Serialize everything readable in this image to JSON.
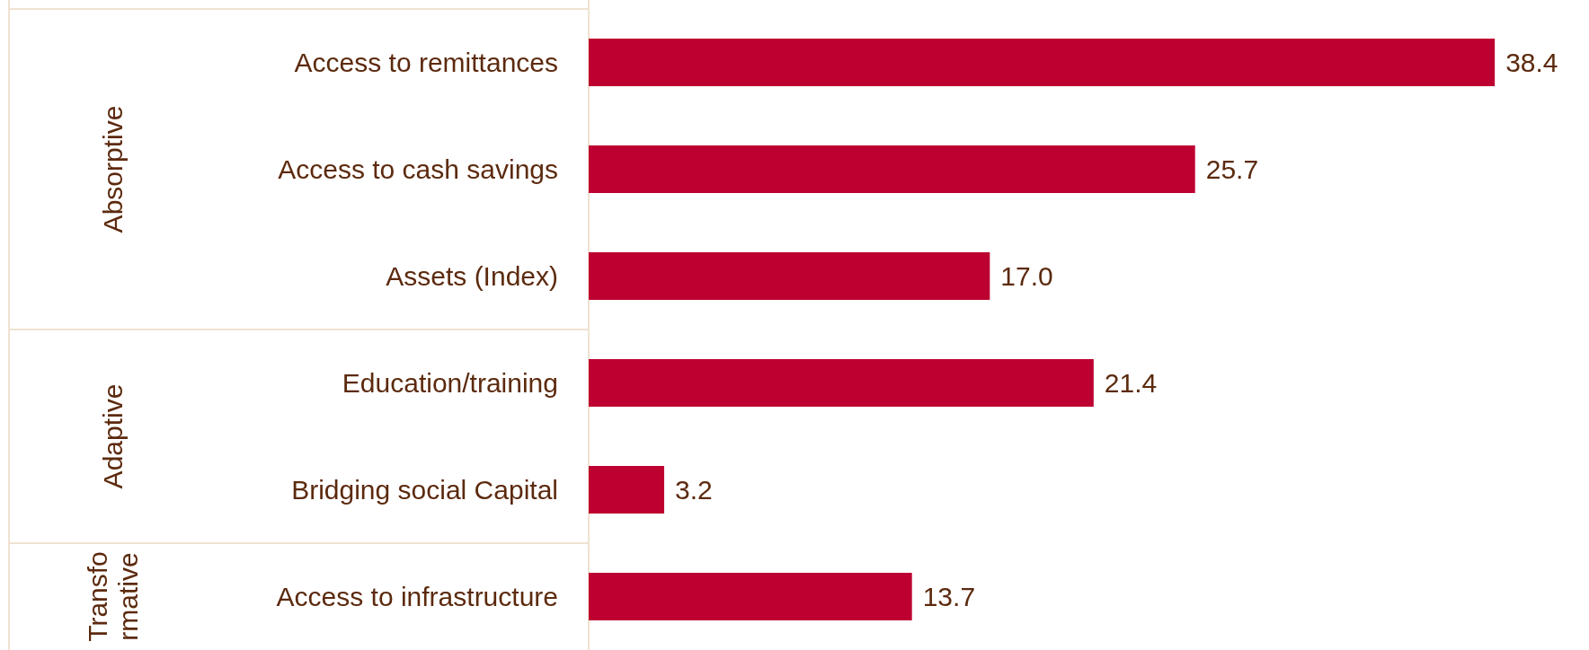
{
  "chart_data": {
    "type": "bar",
    "orientation": "horizontal",
    "grid": false,
    "categories": [
      "Access to remittances",
      "Access to cash savings",
      "Assets (Index)",
      "Education/training",
      "Bridging social Capital",
      "Access to infrastructure"
    ],
    "values": [
      38.4,
      25.7,
      17.0,
      21.4,
      3.2,
      13.7
    ],
    "value_labels": [
      "38.4",
      "25.7",
      "17.0",
      "21.4",
      "3.2",
      "13.7"
    ],
    "color": "#be0031",
    "annotations": [
      "Absorptive",
      "Adaptive",
      "Transformative"
    ]
  }
}
